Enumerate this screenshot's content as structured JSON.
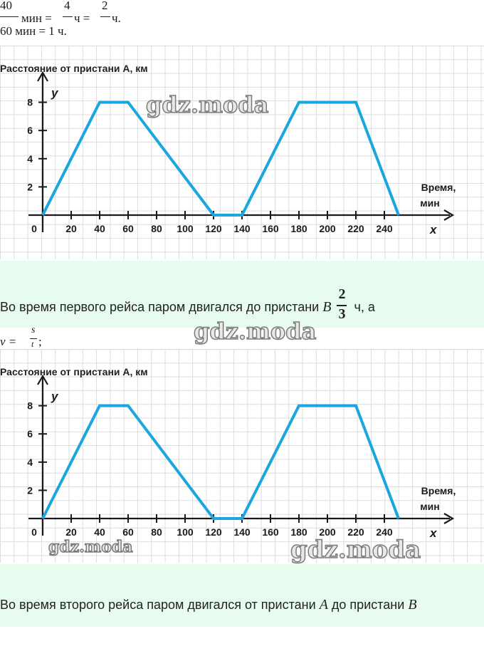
{
  "top_math": {
    "frac1_num": "40",
    "frac1_unit": "мин =",
    "frac2_num": "4",
    "frac2_unit": "ч =",
    "frac3_num": "2",
    "frac3_unit": "ч.",
    "line2": "60 мин = 1 ч."
  },
  "chart_data": [
    {
      "type": "line",
      "title": "Расстояние от пристани А, км",
      "x_axis_letter": "x",
      "y_axis_letter": "y",
      "xlabel_line1": "Время,",
      "xlabel_line2": "мин",
      "x_ticks": [
        "0",
        "20",
        "40",
        "60",
        "80",
        "100",
        "120",
        "140",
        "160",
        "180",
        "200",
        "220",
        "240"
      ],
      "y_ticks": [
        "2",
        "4",
        "6",
        "8"
      ],
      "xlim": [
        0,
        290
      ],
      "ylim": [
        0,
        10
      ],
      "x": [
        0,
        40,
        60,
        120,
        140,
        180,
        220,
        250
      ],
      "y": [
        0,
        8,
        8,
        0,
        0,
        8,
        8,
        0
      ],
      "line_color": "#1aa7e0"
    },
    {
      "type": "line",
      "title": "Расстояние от пристани А, км",
      "x_axis_letter": "x",
      "y_axis_letter": "y",
      "xlabel_line1": "Время,",
      "xlabel_line2": "мин",
      "x_ticks": [
        "0",
        "20",
        "40",
        "60",
        "80",
        "100",
        "120",
        "140",
        "160",
        "180",
        "200",
        "220",
        "240"
      ],
      "y_ticks": [
        "2",
        "4",
        "6",
        "8"
      ],
      "xlim": [
        0,
        290
      ],
      "ylim": [
        0,
        10
      ],
      "x": [
        0,
        40,
        60,
        120,
        140,
        180,
        220,
        250
      ],
      "y": [
        0,
        8,
        8,
        0,
        0,
        8,
        8,
        0
      ],
      "line_color": "#1aa7e0"
    }
  ],
  "band1": {
    "text": "Во время первого рейса паром двигался до пристани",
    "var": "B",
    "frac_num": "2",
    "frac_den": "3",
    "tail": "ч, а"
  },
  "v_formula": {
    "lhs": "v =",
    "num": "s",
    "den": "t",
    "tail": ";"
  },
  "band2": {
    "text1": "Во время второго рейса паром двигался от пристани",
    "var1": "A",
    "text2": "до пристани",
    "var2": "B"
  },
  "watermark": "gdz.moda"
}
